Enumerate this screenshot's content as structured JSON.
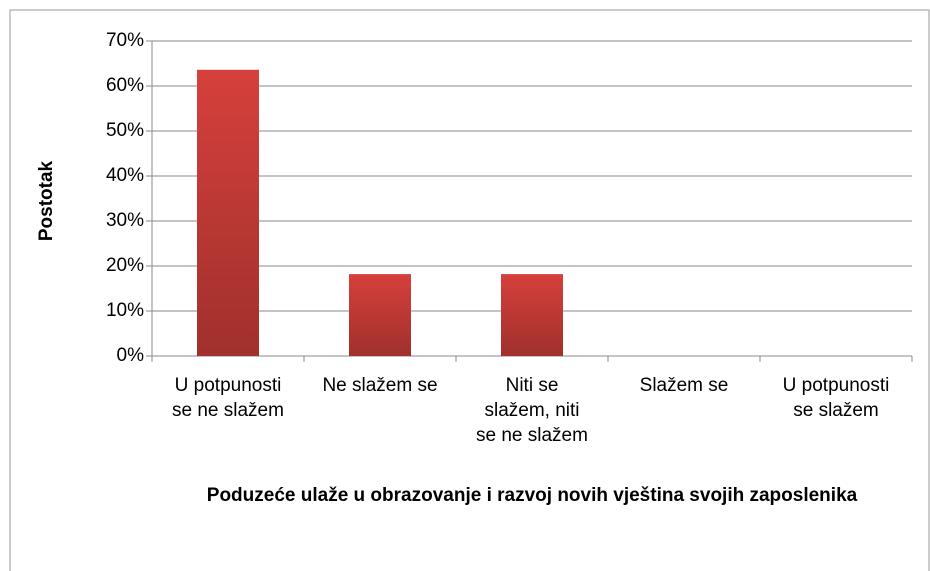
{
  "chart_data": {
    "type": "bar",
    "x_label": "Poduzeće ulaže u obrazovanje i razvoj novih vještina svojih zaposlenika",
    "y_label": "Postotak",
    "categories": [
      "U potpunosti\nse ne slažem",
      "Ne slažem se",
      "Niti se\nslažem, niti\nse ne slažem",
      "Slažem se",
      "U potpunosti\nse slažem"
    ],
    "values": [
      63.6,
      18.2,
      18.2,
      0,
      0
    ],
    "color": "#d6403c",
    "ylim": [
      0,
      70
    ],
    "yticks": [
      {
        "value": 0,
        "label": "0%"
      },
      {
        "value": 10,
        "label": "10%"
      },
      {
        "value": 20,
        "label": "20%"
      },
      {
        "value": 30,
        "label": "30%"
      },
      {
        "value": 40,
        "label": "40%"
      },
      {
        "value": 50,
        "label": "50%"
      },
      {
        "value": 60,
        "label": "60%"
      },
      {
        "value": 70,
        "label": "70%"
      }
    ],
    "grid": true
  }
}
